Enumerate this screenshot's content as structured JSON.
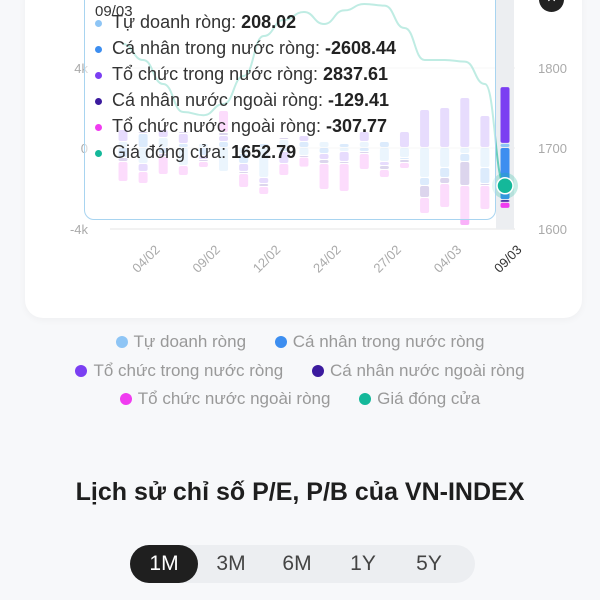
{
  "chart_data": {
    "type": "bar",
    "stacked": true,
    "categories": [
      "",
      "04/02",
      "",
      "",
      "09/02",
      "",
      "",
      "12/02",
      "",
      "",
      "24/02",
      "",
      "",
      "27/02",
      "",
      "",
      "04/03",
      "",
      "",
      "09/03"
    ],
    "x_tick_labels": [
      "04/02",
      "09/02",
      "12/02",
      "24/02",
      "27/02",
      "04/03",
      "09/03"
    ],
    "y_left": {
      "ticks": [
        "4k",
        "0",
        "-4k"
      ],
      "ylim": [
        -4000,
        4000
      ]
    },
    "y_right": {
      "ticks": [
        "1800",
        "1700",
        "1600"
      ],
      "ylim": [
        1600,
        1800
      ]
    },
    "grid": true,
    "legend_position": "bottom",
    "series": [
      {
        "name": "Tự doanh ròng",
        "color": "#8ec5f5",
        "values": [
          300,
          -800,
          500,
          -900,
          200,
          -1200,
          -300,
          -1500,
          400,
          -400,
          300,
          -200,
          300,
          -700,
          -500,
          -1500,
          -1000,
          -300,
          -1000,
          208
        ]
      },
      {
        "name": "Cá nhân trong nước ròng",
        "color": "#3d8ef0",
        "values": [
          -500,
          700,
          -300,
          200,
          -400,
          300,
          -500,
          200,
          -200,
          300,
          -300,
          200,
          -200,
          300,
          -100,
          -400,
          -500,
          -400,
          -800,
          -2608
        ]
      },
      {
        "name": "Tổ chức trong nước ròng",
        "color": "#7b3ff2",
        "values": [
          600,
          -400,
          400,
          500,
          -200,
          300,
          -400,
          -300,
          -600,
          300,
          -300,
          -500,
          500,
          -200,
          800,
          1900,
          2000,
          2500,
          1600,
          2838
        ]
      },
      {
        "name": "Cá nhân nước ngoài ròng",
        "color": "#3b1a9e",
        "values": [
          -200,
          100,
          -150,
          100,
          -100,
          150,
          -100,
          -150,
          100,
          -80,
          -200,
          -100,
          -100,
          -200,
          -150,
          -600,
          -300,
          -1200,
          -100,
          -129
        ]
      },
      {
        "name": "Tổ chức nước ngoài ròng",
        "color": "#f03cf0",
        "values": [
          -1000,
          -600,
          -900,
          -500,
          -300,
          1100,
          -700,
          -400,
          -600,
          -500,
          -1300,
          -1400,
          -800,
          -400,
          -300,
          -800,
          -1200,
          -2000,
          -1200,
          -308
        ]
      }
    ],
    "line": {
      "name": "Giá đóng cửa",
      "color": "#14b89a",
      "values": [
        1830,
        1810,
        1780,
        1745,
        1741,
        1755,
        1790,
        1840,
        1860,
        1870,
        1855,
        1872,
        1880,
        1878,
        1850,
        1810,
        1810,
        1808,
        1780,
        1652.79
      ]
    }
  },
  "tooltip": {
    "date": "09/03",
    "rows": [
      {
        "label": "Tự doanh ròng: ",
        "value": "208.02",
        "color": "#8ec5f5"
      },
      {
        "label": "Cá nhân trong nước ròng: ",
        "value": "-2608.44",
        "color": "#3d8ef0"
      },
      {
        "label": "Tổ chức trong nước ròng: ",
        "value": "2837.61",
        "color": "#7b3ff2"
      },
      {
        "label": "Cá nhân nước ngoài ròng: ",
        "value": "-129.41",
        "color": "#3b1a9e"
      },
      {
        "label": "Tổ chức nước ngoài ròng: ",
        "value": "-307.77",
        "color": "#f03cf0"
      },
      {
        "label": "Giá đóng cửa: ",
        "value": "1652.79",
        "color": "#14b89a"
      }
    ],
    "close_icon": "close-icon",
    "close_label": "×"
  },
  "legend": [
    {
      "label": "Tự doanh ròng",
      "color": "#8ec5f5"
    },
    {
      "label": "Cá nhân trong nước ròng",
      "color": "#3d8ef0"
    },
    {
      "label": "Tổ chức trong nước ròng",
      "color": "#7b3ff2"
    },
    {
      "label": "Cá nhân nước ngoài ròng",
      "color": "#3b1a9e"
    },
    {
      "label": "Tổ chức nước ngoài ròng",
      "color": "#f03cf0"
    },
    {
      "label": "Giá đóng cửa",
      "color": "#14b89a"
    }
  ],
  "pe_section": {
    "title": "Lịch sử chỉ số P/E, P/B của VN-INDEX",
    "periods": [
      "1M",
      "3M",
      "6M",
      "1Y",
      "5Y"
    ],
    "selected": "1M"
  }
}
